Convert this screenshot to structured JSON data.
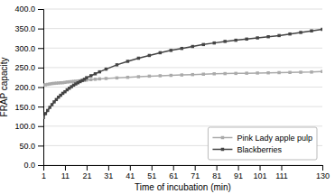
{
  "chart_data": {
    "type": "line",
    "xlabel": "Time of incubation (min)",
    "ylabel": "FRAP capacity",
    "x": [
      1,
      2,
      3,
      4,
      5,
      6,
      7,
      8,
      9,
      10,
      11,
      12,
      13,
      14,
      15,
      16,
      17,
      18,
      19,
      20,
      21,
      23,
      25,
      27,
      30,
      35,
      40,
      45,
      50,
      55,
      60,
      65,
      70,
      75,
      80,
      85,
      90,
      95,
      100,
      105,
      110,
      115,
      120,
      125,
      130
    ],
    "series": [
      {
        "name": "Pink Lady apple pulp",
        "color": "#aaaaaa",
        "marker": "square",
        "values": [
          205,
          206,
          207,
          208,
          209,
          209.5,
          210,
          210.5,
          211,
          211.2,
          212,
          213,
          213.5,
          214,
          214.5,
          215,
          215.5,
          216,
          216.5,
          217,
          218,
          219,
          220,
          221,
          222,
          223.5,
          225,
          226.5,
          228,
          229,
          230,
          231,
          232,
          233,
          234,
          234.5,
          235,
          235.5,
          236,
          236.5,
          237,
          237.5,
          238,
          238.5,
          240
        ]
      },
      {
        "name": "Blackberries",
        "color": "#444444",
        "marker": "square",
        "values": [
          122,
          132,
          140,
          148,
          155,
          162,
          168,
          174,
          179,
          184,
          188,
          193,
          197,
          201,
          205,
          208,
          211,
          214,
          217,
          220,
          224,
          229,
          234,
          239,
          246,
          257,
          266,
          274,
          281,
          288,
          294,
          299,
          304,
          309,
          313,
          317,
          320,
          323,
          326,
          329,
          332,
          336,
          340,
          344,
          348
        ]
      }
    ],
    "xlim": [
      1,
      130
    ],
    "ylim": [
      0.0,
      400.0
    ],
    "xticks": [
      1,
      11,
      21,
      31,
      41,
      51,
      61,
      71,
      81,
      91,
      101,
      111,
      130
    ],
    "yticks": [
      {
        "value": 0.0,
        "label": "0.0"
      },
      {
        "value": 50.0,
        "label": "50.0"
      },
      {
        "value": 100.0,
        "label": "100.0"
      },
      {
        "value": 150.0,
        "label": "150.0"
      },
      {
        "value": 200.0,
        "label": "200.0"
      },
      {
        "value": 250.0,
        "label": "250.0"
      },
      {
        "value": 300.0,
        "label": "300.0"
      },
      {
        "value": 350.0,
        "label": "350.0"
      },
      {
        "value": 400.0,
        "label": "400.0"
      }
    ],
    "grid": true,
    "legend": "lower right"
  }
}
